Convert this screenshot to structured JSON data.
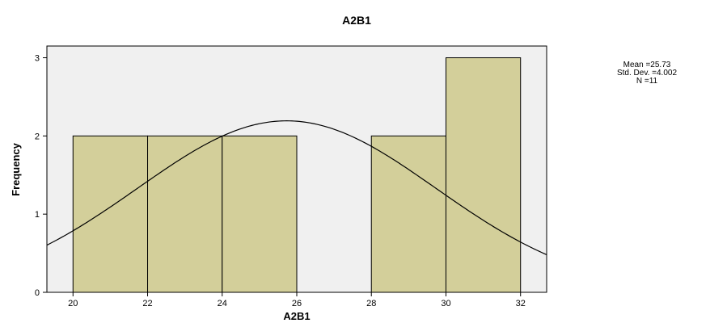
{
  "chart_data": {
    "type": "bar",
    "title": "A2B1",
    "xlabel": "A2B1",
    "ylabel": "Frequency",
    "bins": [
      {
        "from": 20,
        "to": 22,
        "count": 2
      },
      {
        "from": 22,
        "to": 24,
        "count": 2
      },
      {
        "from": 24,
        "to": 26,
        "count": 2
      },
      {
        "from": 26,
        "to": 28,
        "count": 0
      },
      {
        "from": 28,
        "to": 30,
        "count": 2
      },
      {
        "from": 30,
        "to": 32,
        "count": 3
      }
    ],
    "xticks": [
      "20",
      "22",
      "24",
      "26",
      "28",
      "30",
      "32"
    ],
    "yticks": [
      "0",
      "1",
      "2",
      "3"
    ],
    "xlim": [
      19.3,
      32.7
    ],
    "ylim": [
      0,
      3.15
    ],
    "normal_curve": {
      "mean": 25.73,
      "sd": 4.002,
      "n": 11,
      "bin_width": 2
    },
    "stats_lines": [
      "Mean =25.73",
      "Std. Dev. =4.002",
      "N =11"
    ],
    "colors": {
      "plot_background": "#f0f0f0",
      "bar_fill": "#d3cf9a",
      "bar_stroke": "#000000",
      "curve": "#000000"
    },
    "legend_position": "right",
    "grid": false
  }
}
